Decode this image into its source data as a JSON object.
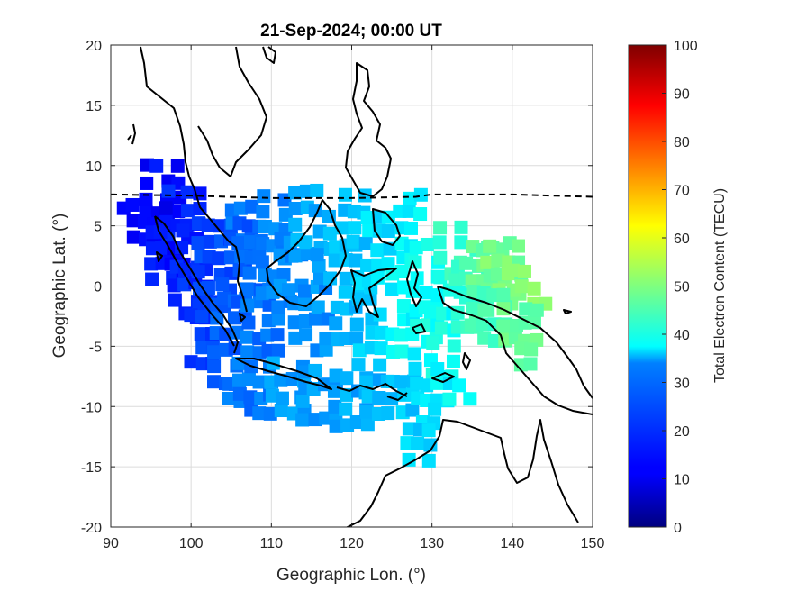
{
  "chart_data": {
    "type": "heatmap",
    "title": "21-Sep-2024; 00:00 UT",
    "xlabel": "Geographic Lon. (°)",
    "ylabel": "Geographic Lat. (°)",
    "xlim": [
      90,
      150
    ],
    "ylim": [
      -20,
      20
    ],
    "xticks": [
      "90",
      "100",
      "110",
      "120",
      "130",
      "140",
      "150"
    ],
    "yticks": [
      "20",
      "15",
      "10",
      "5",
      "0",
      "-5",
      "-10",
      "-15",
      "-20"
    ],
    "grid": true,
    "colorbar": {
      "label": "Total Electron Content (TECU)",
      "range": [
        0,
        100
      ],
      "ticks": [
        "0",
        "10",
        "20",
        "30",
        "40",
        "50",
        "60",
        "70",
        "80",
        "90",
        "100"
      ],
      "colormap": "jet"
    },
    "dip_equator": {
      "style": "dashed",
      "lon": [
        90,
        100,
        110,
        120,
        128,
        130,
        140,
        150
      ],
      "lat": [
        7.6,
        7.5,
        7.3,
        7.3,
        7.4,
        7.6,
        7.6,
        7.4
      ]
    },
    "tec_regions": [
      {
        "lon": [
          93.5,
          97.5
        ],
        "lat": [
          5.5,
          9.5
        ],
        "tec": 13
      },
      {
        "lon": [
          90.5,
          96
        ],
        "lat": [
          3.5,
          7
        ],
        "tec": 12
      },
      {
        "lon": [
          96,
          100
        ],
        "lat": [
          2,
          7.5
        ],
        "tec": 16
      },
      {
        "lon": [
          94,
          99
        ],
        "lat": [
          0,
          4
        ],
        "tec": 14
      },
      {
        "lon": [
          97,
          101
        ],
        "lat": [
          -3,
          2
        ],
        "tec": 17
      },
      {
        "lon": [
          100,
          104
        ],
        "lat": [
          -2,
          5.5
        ],
        "tec": 20
      },
      {
        "lon": [
          99,
          102
        ],
        "lat": [
          -7,
          -2
        ],
        "tec": 19
      },
      {
        "lon": [
          102,
          105
        ],
        "lat": [
          -8.5,
          -2
        ],
        "tec": 22
      },
      {
        "lon": [
          103,
          106
        ],
        "lat": [
          -3,
          2
        ],
        "tec": 21
      },
      {
        "lon": [
          104,
          107
        ],
        "lat": [
          2,
          6
        ],
        "tec": 23
      },
      {
        "lon": [
          105,
          108
        ],
        "lat": [
          -2,
          5
        ],
        "tec": 22
      },
      {
        "lon": [
          102.5,
          105.5
        ],
        "lat": [
          -10,
          -8
        ],
        "tec": 25
      },
      {
        "lon": [
          105,
          109
        ],
        "lat": [
          -11,
          -7
        ],
        "tec": 24
      },
      {
        "lon": [
          106,
          110
        ],
        "lat": [
          -6,
          0
        ],
        "tec": 24
      },
      {
        "lon": [
          108,
          111
        ],
        "lat": [
          -1,
          7
        ],
        "tec": 25
      },
      {
        "lon": [
          110,
          113
        ],
        "lat": [
          -2,
          4
        ],
        "tec": 26
      },
      {
        "lon": [
          109,
          113
        ],
        "lat": [
          -11,
          -6
        ],
        "tec": 28
      },
      {
        "lon": [
          113,
          117
        ],
        "lat": [
          -11.5,
          -7
        ],
        "tec": 28
      },
      {
        "lon": [
          117,
          121
        ],
        "lat": [
          -12,
          -8
        ],
        "tec": 29
      },
      {
        "lon": [
          121,
          124
        ],
        "lat": [
          -11,
          -8
        ],
        "tec": 30
      },
      {
        "lon": [
          124,
          127
        ],
        "lat": [
          -11,
          -8
        ],
        "tec": 32
      },
      {
        "lon": [
          112,
          117
        ],
        "lat": [
          -6,
          0
        ],
        "tec": 27
      },
      {
        "lon": [
          115,
          118
        ],
        "lat": [
          0,
          6
        ],
        "tec": 30
      },
      {
        "lon": [
          117,
          120
        ],
        "lat": [
          -5,
          3
        ],
        "tec": 31
      },
      {
        "lon": [
          112,
          115
        ],
        "lat": [
          2,
          8
        ],
        "tec": 29
      },
      {
        "lon": [
          118,
          121
        ],
        "lat": [
          3,
          8
        ],
        "tec": 32
      },
      {
        "lon": [
          120,
          123
        ],
        "lat": [
          -7,
          0
        ],
        "tec": 33
      },
      {
        "lon": [
          121,
          124
        ],
        "lat": [
          0,
          6
        ],
        "tec": 35
      },
      {
        "lon": [
          124,
          127
        ],
        "lat": [
          -6,
          3
        ],
        "tec": 37
      },
      {
        "lon": [
          125,
          128
        ],
        "lat": [
          3,
          7
        ],
        "tec": 37
      },
      {
        "lon": [
          127,
          130
        ],
        "lat": [
          -5,
          3
        ],
        "tec": 39
      },
      {
        "lon": [
          129,
          132
        ],
        "lat": [
          -8,
          -2
        ],
        "tec": 39
      },
      {
        "lon": [
          130,
          133
        ],
        "lat": [
          -1,
          5
        ],
        "tec": 42
      },
      {
        "lon": [
          132,
          136
        ],
        "lat": [
          -4,
          3
        ],
        "tec": 44
      },
      {
        "lon": [
          134,
          138
        ],
        "lat": [
          0,
          3.5
        ],
        "tec": 47
      },
      {
        "lon": [
          136,
          140
        ],
        "lat": [
          -1,
          3
        ],
        "tec": 49
      },
      {
        "lon": [
          139,
          144
        ],
        "lat": [
          -2,
          1
        ],
        "tec": 51
      },
      {
        "lon": [
          134,
          138
        ],
        "lat": [
          -5,
          -1
        ],
        "tec": 45
      },
      {
        "lon": [
          138,
          143
        ],
        "lat": [
          -5,
          -2
        ],
        "tec": 47
      },
      {
        "lon": [
          140,
          142
        ],
        "lat": [
          -7,
          -5
        ],
        "tec": 48
      },
      {
        "lon": [
          127,
          131
        ],
        "lat": [
          -10,
          -7
        ],
        "tec": 36
      },
      {
        "lon": [
          131,
          134
        ],
        "lat": [
          -10,
          -8
        ],
        "tec": 37
      },
      {
        "lon": [
          128,
          130
        ],
        "lat": [
          -12,
          -10
        ],
        "tec": 35
      },
      {
        "lon": [
          126,
          129
        ],
        "lat": [
          -15,
          -12
        ],
        "tec": 33
      }
    ]
  }
}
